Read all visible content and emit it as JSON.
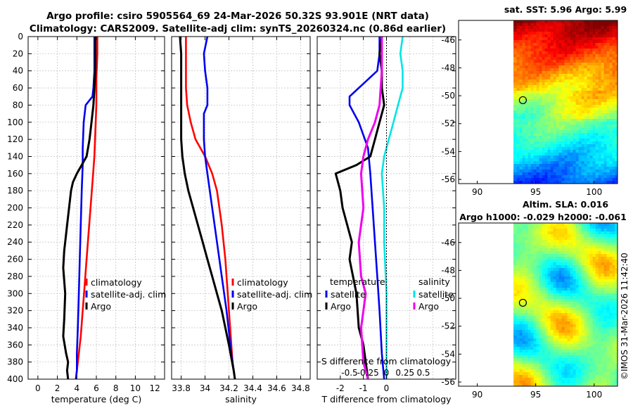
{
  "title_line1": "Argo profile: csiro 5905564_69 24-Mar-2026 50.32S 93.901E (NRT data)",
  "title_line2": "Climatology: CARS2009. Satellite-adj clim: synTS_20260324.nc (0.86d earlier)",
  "credit": "©IMOS 31-Mar-2026 11:42:40",
  "colors": {
    "climatology": "#ff0000",
    "satellite": "#0000ee",
    "argo": "#000000",
    "sal_satellite": "#00e5e5",
    "sal_argo": "#ee00ee"
  },
  "chart_data": [
    {
      "id": "temperature",
      "type": "line",
      "xlabel": "temperature (deg C)",
      "xlim": [
        -1,
        13
      ],
      "xticks": [
        0,
        2,
        4,
        6,
        8,
        10,
        12
      ],
      "ylim": [
        400,
        0
      ],
      "yticks": [
        0,
        20,
        40,
        60,
        80,
        100,
        120,
        140,
        160,
        180,
        200,
        220,
        240,
        260,
        280,
        300,
        320,
        340,
        360,
        380,
        400
      ],
      "legend": [
        "climatology",
        "satellite-adj. clim",
        "Argo"
      ],
      "series": [
        {
          "name": "climatology",
          "color": "#ff0000",
          "x": [
            6.1,
            6.1,
            6.0,
            6.0,
            5.9,
            5.8,
            5.6,
            5.4,
            5.2,
            5.0,
            4.8,
            4.6,
            4.4,
            4.2,
            4.0,
            3.9
          ],
          "y": [
            0,
            20,
            50,
            80,
            110,
            140,
            170,
            200,
            230,
            260,
            290,
            320,
            350,
            370,
            390,
            400
          ]
        },
        {
          "name": "satellite-adj. clim",
          "color": "#0000ee",
          "x": [
            5.8,
            5.8,
            5.8,
            5.7,
            5.6,
            4.9,
            4.7,
            4.6,
            4.6,
            4.5,
            4.4,
            4.3,
            4.2,
            4.1,
            4.0,
            4.0,
            3.9
          ],
          "y": [
            0,
            20,
            40,
            60,
            70,
            80,
            100,
            130,
            150,
            180,
            220,
            260,
            300,
            340,
            370,
            390,
            400
          ]
        },
        {
          "name": "Argo",
          "color": "#000000",
          "x": [
            5.9,
            5.9,
            5.9,
            5.8,
            5.7,
            5.5,
            5.3,
            5.0,
            4.5,
            4.0,
            3.6,
            3.4,
            3.2,
            3.0,
            2.8,
            2.7,
            2.6,
            2.8,
            2.7,
            2.6,
            2.9,
            3.1,
            3.0,
            3.1
          ],
          "y": [
            0,
            20,
            40,
            60,
            80,
            100,
            120,
            140,
            150,
            160,
            170,
            180,
            200,
            220,
            240,
            250,
            270,
            300,
            330,
            350,
            370,
            380,
            390,
            400
          ]
        }
      ]
    },
    {
      "id": "salinity",
      "type": "line",
      "xlabel": "salinity",
      "xlim": [
        33.72,
        34.88
      ],
      "xticks": [
        33.8,
        34,
        34.2,
        34.4,
        34.6,
        34.8
      ],
      "xticklabels": [
        "33.8",
        "34",
        "34.2",
        "34.4",
        "34.6",
        "34.8"
      ],
      "ylim": [
        400,
        0
      ],
      "legend": [
        "climatology",
        "satellite-adj. clim",
        "Argo"
      ],
      "series": [
        {
          "name": "climatology",
          "color": "#ff0000",
          "x": [
            33.84,
            33.84,
            33.84,
            33.85,
            33.88,
            33.92,
            34.0,
            34.06,
            34.1,
            34.14,
            34.17,
            34.19,
            34.21,
            34.23,
            34.25
          ],
          "y": [
            0,
            30,
            60,
            80,
            100,
            120,
            140,
            160,
            180,
            220,
            260,
            300,
            340,
            380,
            400
          ]
        },
        {
          "name": "satellite-adj. clim",
          "color": "#0000ee",
          "x": [
            34.02,
            33.99,
            34.0,
            34.02,
            34.02,
            33.99,
            33.99,
            33.99,
            34.0,
            34.02,
            34.06,
            34.1,
            34.14,
            34.18,
            34.22,
            34.25
          ],
          "y": [
            0,
            20,
            40,
            60,
            80,
            90,
            100,
            120,
            140,
            160,
            200,
            240,
            280,
            320,
            370,
            400
          ]
        },
        {
          "name": "Argo",
          "color": "#000000",
          "x": [
            33.79,
            33.8,
            33.8,
            33.8,
            33.8,
            33.81,
            33.83,
            33.86,
            33.9,
            33.94,
            33.98,
            34.02,
            34.06,
            34.1,
            34.14,
            34.2,
            34.24,
            34.25
          ],
          "y": [
            0,
            20,
            60,
            100,
            120,
            140,
            160,
            180,
            200,
            220,
            240,
            260,
            280,
            300,
            320,
            360,
            390,
            400
          ]
        }
      ]
    },
    {
      "id": "difference",
      "type": "line",
      "xlabel": "T difference from climatology",
      "xlabel_top": "S difference from climatology",
      "xlim": [
        -3,
        3
      ],
      "xticks": [
        -2,
        -1,
        0
      ],
      "xticklabels": [
        "-2",
        "-1",
        "0"
      ],
      "top_ticks": [
        {
          "label": "-0.5",
          "x": -1.6
        },
        {
          "label": "-0.25",
          "x": -0.8
        },
        {
          "label": "0",
          "x": 0
        },
        {
          "label": "0.25",
          "x": 0.8
        },
        {
          "label": "0.5",
          "x": 1.6
        }
      ],
      "ylim": [
        400,
        0
      ],
      "legend_temperature": {
        "title": "temperature",
        "items": [
          "satellite",
          "Argo"
        ]
      },
      "legend_salinity": {
        "title": "salinity",
        "items": [
          "satellite",
          "Argo"
        ]
      },
      "series": [
        {
          "name": "temperature satellite",
          "color": "#0000ee",
          "x": [
            -0.3,
            -0.3,
            -0.4,
            -1.6,
            -1.6,
            -1.2,
            -0.8,
            -0.7,
            -0.6,
            -0.5,
            -0.4,
            -0.3,
            -0.2,
            -0.1
          ],
          "y": [
            0,
            20,
            40,
            70,
            80,
            100,
            130,
            160,
            200,
            240,
            280,
            320,
            370,
            400
          ]
        },
        {
          "name": "temperature Argo",
          "color": "#000000",
          "x": [
            -0.2,
            -0.3,
            -0.2,
            -0.2,
            -0.1,
            -0.3,
            -0.5,
            -0.7,
            -1.3,
            -2.2,
            -2.0,
            -1.9,
            -1.7,
            -1.5,
            -1.6,
            -1.3,
            -1.2,
            -1.0,
            -0.9,
            -0.8
          ],
          "y": [
            0,
            20,
            40,
            60,
            80,
            100,
            120,
            140,
            150,
            160,
            180,
            200,
            220,
            240,
            260,
            300,
            340,
            360,
            380,
            400
          ]
        },
        {
          "name": "salinity satellite",
          "color": "#00e5e5",
          "x": [
            0.7,
            0.6,
            0.7,
            0.7,
            0.5,
            0.3,
            0.1,
            -0.1,
            -0.2,
            -0.1,
            -0.1,
            0.0,
            0.0,
            0.0
          ],
          "y": [
            0,
            20,
            40,
            60,
            80,
            100,
            120,
            140,
            160,
            200,
            240,
            300,
            360,
            400
          ]
        },
        {
          "name": "salinity Argo",
          "color": "#ee00ee",
          "x": [
            -0.2,
            -0.2,
            -0.3,
            -0.5,
            -0.8,
            -1.0,
            -1.1,
            -1.0,
            -1.2,
            -1.1,
            -0.9,
            -1.1,
            -1.0,
            -0.8
          ],
          "y": [
            0,
            40,
            80,
            100,
            120,
            140,
            160,
            200,
            240,
            280,
            300,
            340,
            380,
            400
          ]
        }
      ]
    },
    {
      "id": "sst_map",
      "type": "heatmap",
      "title": "sat. SST: 5.96 Argo: 5.99",
      "xlim": [
        88.4,
        102
      ],
      "ylim": [
        -56.3,
        -44.6
      ],
      "xticks": [
        90,
        95,
        100
      ],
      "yticks": [
        -46,
        -48,
        -50,
        -52,
        -54,
        -56
      ],
      "argo_lon": 93.901,
      "argo_lat": -50.32
    },
    {
      "id": "sla_map",
      "type": "heatmap",
      "title_line1": "Altim. SLA: 0.016",
      "title_line2": "Argo h1000: -0.029 h2000: -0.061",
      "xlim": [
        88.4,
        102
      ],
      "ylim": [
        -56.3,
        -44.6
      ],
      "xticks": [
        90,
        95,
        100
      ],
      "yticks": [
        -46,
        -48,
        -50,
        -52,
        -54,
        -56
      ],
      "argo_lon": 93.901,
      "argo_lat": -50.32
    }
  ]
}
